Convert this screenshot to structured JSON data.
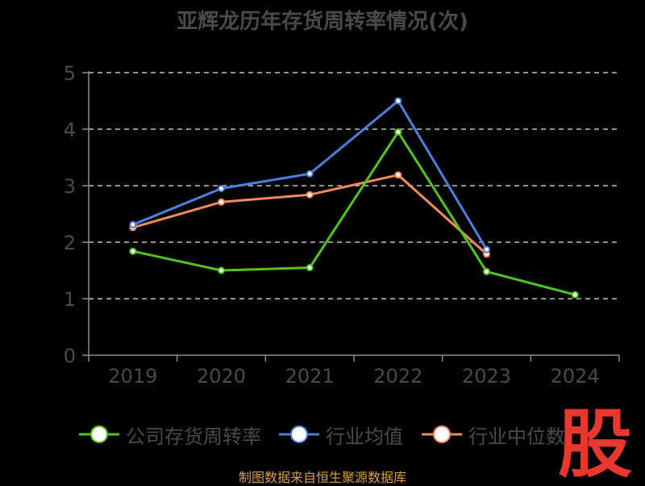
{
  "chart_data": {
    "type": "line",
    "title": "亚辉龙历年存货周转率情况(次)",
    "ylabel": "(次)",
    "xlabel": "",
    "categories": [
      "2019",
      "2020",
      "2021",
      "2022",
      "2023",
      "2024"
    ],
    "ylim": [
      0,
      5
    ],
    "yticks": [
      0,
      1,
      2,
      3,
      4,
      5
    ],
    "grid": true,
    "legend_position": "bottom",
    "series": [
      {
        "name": "公司存货周转率",
        "color": "#52c41a",
        "values": [
          1.84,
          1.5,
          1.55,
          3.95,
          1.48,
          1.07
        ]
      },
      {
        "name": "行业均值",
        "color": "#4a7fe0",
        "values": [
          2.31,
          2.95,
          3.21,
          4.5,
          1.87,
          null
        ]
      },
      {
        "name": "行业中位数",
        "color": "#f48a5a",
        "values": [
          2.26,
          2.71,
          2.84,
          3.19,
          1.79,
          null
        ]
      }
    ]
  },
  "watermark": "股",
  "source_note": "制图数据来自恒生聚源数据库",
  "colors": {
    "background": "#000000",
    "axis": "#8c8c8c",
    "grid": "#e6e6e6",
    "ylabel": "#e02020",
    "watermark": "#e8372e"
  }
}
